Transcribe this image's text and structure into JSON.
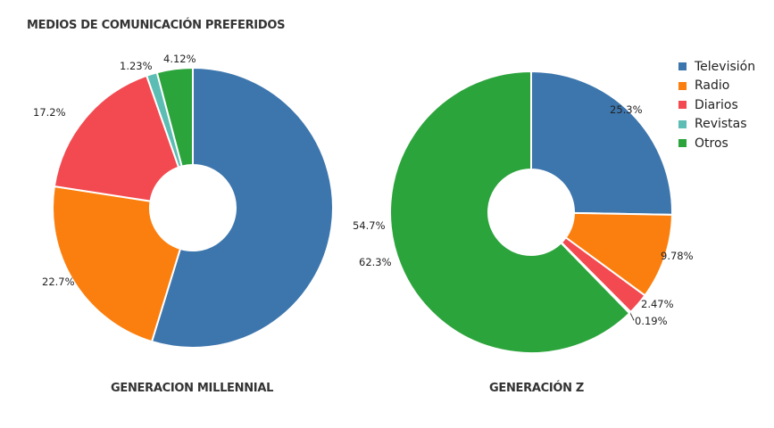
{
  "title": "MEDIOS DE COMUNICACIÓN PREFERIDOS",
  "legend": [
    {
      "label": "Televisión",
      "color": "#3d76ad"
    },
    {
      "label": "Radio",
      "color": "#fb7f0e"
    },
    {
      "label": "Diarios",
      "color": "#f24a50"
    },
    {
      "label": "Revistas",
      "color": "#5cbdb4"
    },
    {
      "label": "Otros",
      "color": "#2ca43c"
    }
  ],
  "chart_data": [
    {
      "type": "pie",
      "label": "GENERACION MILLENNIAL",
      "categories": [
        "Televisión",
        "Radio",
        "Diarios",
        "Revistas",
        "Otros"
      ],
      "values": [
        54.7,
        22.7,
        17.2,
        1.23,
        4.12
      ],
      "value_labels": [
        "54.7%",
        "22.7%",
        "17.2%",
        "1.23%",
        "4.12%"
      ]
    },
    {
      "type": "pie",
      "label": "GENERACIÓN Z",
      "categories": [
        "Televisión",
        "Radio",
        "Diarios",
        "Revistas",
        "Otros"
      ],
      "values": [
        25.3,
        9.78,
        2.47,
        0.19,
        62.3
      ],
      "value_labels": [
        "25.3%",
        "9.78%",
        "2.47%",
        "0.19%",
        "62.3%"
      ]
    }
  ]
}
